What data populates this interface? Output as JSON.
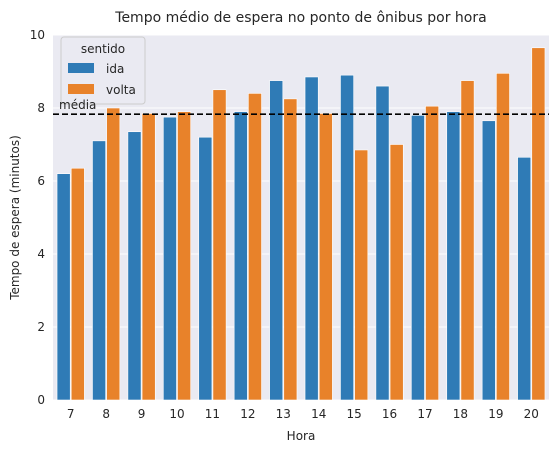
{
  "chart_data": {
    "type": "bar",
    "title": "Tempo médio de espera no ponto de ônibus por hora",
    "xlabel": "Hora",
    "ylabel": "Tempo de espera (minutos)",
    "categories": [
      "7",
      "8",
      "9",
      "10",
      "11",
      "12",
      "13",
      "14",
      "15",
      "16",
      "17",
      "18",
      "19",
      "20"
    ],
    "ylim": [
      0,
      10
    ],
    "yticks": [
      0,
      2,
      4,
      6,
      8,
      10
    ],
    "grid": true,
    "legend": {
      "title": "sentido",
      "placement": "top-left"
    },
    "series": [
      {
        "name": "ida",
        "color": "#2f7bb6",
        "values": [
          6.2,
          7.1,
          7.35,
          7.75,
          7.2,
          7.9,
          8.75,
          8.85,
          8.9,
          8.6,
          7.8,
          7.9,
          7.65,
          6.65
        ]
      },
      {
        "name": "volta",
        "color": "#e8822a",
        "values": [
          6.35,
          8.0,
          7.85,
          7.9,
          8.5,
          8.4,
          8.25,
          7.85,
          6.85,
          7.0,
          8.05,
          8.75,
          8.95,
          9.65
        ]
      }
    ],
    "reference_line": {
      "value": 7.83,
      "label": "média",
      "style": "dashed",
      "color": "#000000"
    }
  }
}
